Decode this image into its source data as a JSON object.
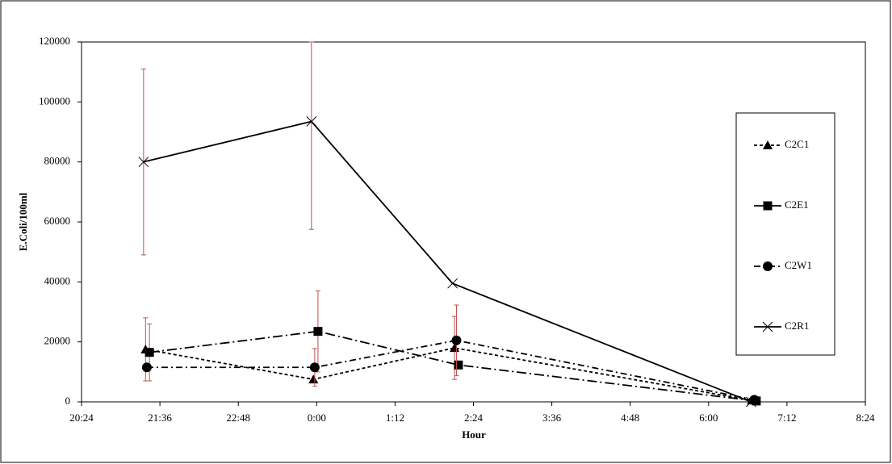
{
  "chart_data": {
    "type": "line",
    "x_label": "Hour",
    "y_label": "E.Coli/100ml",
    "xlim": [
      20.4,
      32.4
    ],
    "xticks": [
      {
        "value": 20.4,
        "label": "20:24"
      },
      {
        "value": 21.6,
        "label": "21:36"
      },
      {
        "value": 22.8,
        "label": "22:48"
      },
      {
        "value": 24,
        "label": "0:00"
      },
      {
        "value": 25.2,
        "label": "1:12"
      },
      {
        "value": 26.4,
        "label": "2:24"
      },
      {
        "value": 27.6,
        "label": "3:36"
      },
      {
        "value": 28.8,
        "label": "4:48"
      },
      {
        "value": 30,
        "label": "6:00"
      },
      {
        "value": 31.2,
        "label": "7:12"
      },
      {
        "value": 32.4,
        "label": "8:24"
      }
    ],
    "ylim": [
      0,
      120000
    ],
    "yticks": [
      0,
      20000,
      40000,
      60000,
      80000,
      100000,
      120000
    ],
    "grid": false,
    "legend": "right",
    "error_color": "#c0504d",
    "series": [
      {
        "name": "C2C1",
        "color": "#000000",
        "marker": "triangle",
        "dash": "4 3",
        "x": [
          21.38,
          23.95,
          26.11,
          30.66
        ],
        "values": [
          17500,
          7500,
          18000,
          500
        ],
        "errors": [
          10500,
          null,
          10500,
          null
        ]
      },
      {
        "name": "C2E1",
        "color": "#000000",
        "marker": "square",
        "dash": "12 4 2 4",
        "x": [
          21.44,
          24.02,
          26.17,
          30.73
        ],
        "values": [
          16500,
          23500,
          12300,
          300
        ],
        "errors": [
          9500,
          13500,
          null,
          null
        ]
      },
      {
        "name": "C2W1",
        "color": "#000000",
        "marker": "circle",
        "dash": "8 4 2 4",
        "x": [
          21.4,
          23.97,
          26.14,
          30.7
        ],
        "values": [
          11500,
          11500,
          20500,
          700
        ],
        "errors": [
          null,
          6300,
          11800,
          null
        ]
      },
      {
        "name": "C2R1",
        "color": "#000000",
        "marker": "cross",
        "dash": "none",
        "x": [
          21.35,
          23.92,
          26.08,
          30.65
        ],
        "values": [
          80000,
          93500,
          39500,
          0
        ],
        "errors": [
          31000,
          36000,
          null,
          null
        ]
      }
    ]
  }
}
